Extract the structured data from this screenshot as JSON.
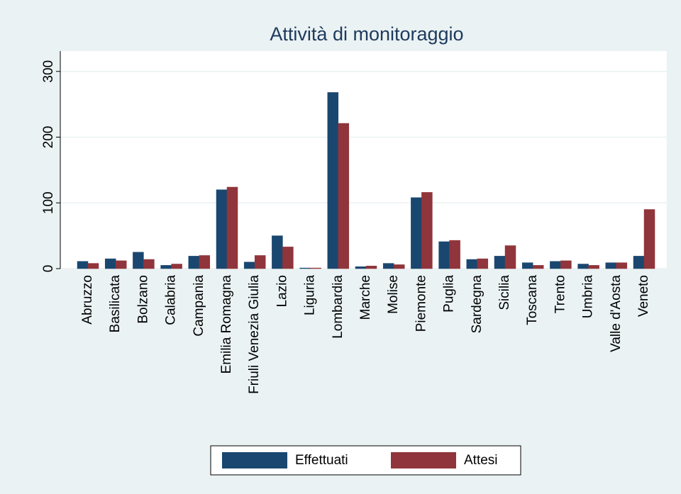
{
  "chart_data": {
    "type": "bar",
    "title": "Attività di monitoraggio",
    "categories": [
      "Abruzzo",
      "Basilicata",
      "Bolzano",
      "Calabria",
      "Campania",
      "Emilia Romagna",
      "Friuli Venezia Giulia",
      "Lazio",
      "Liguria",
      "Lombardia",
      "Marche",
      "Molise",
      "Piemonte",
      "Puglia",
      "Sardegna",
      "Sicilia",
      "Toscana",
      "Trento",
      "Umbria",
      "Valle d'Aosta",
      "Veneto"
    ],
    "series": [
      {
        "name": "Effettuati",
        "color": "#1a476f",
        "values": [
          11,
          15,
          25,
          5,
          19,
          120,
          10,
          50,
          1,
          268,
          3,
          8,
          108,
          41,
          14,
          19,
          9,
          11,
          7,
          9,
          19
        ]
      },
      {
        "name": "Attesi",
        "color": "#90353b",
        "values": [
          8,
          12,
          14,
          7,
          20,
          124,
          20,
          33,
          1,
          221,
          4,
          6,
          116,
          43,
          15,
          35,
          5,
          12,
          5,
          9,
          90
        ]
      }
    ],
    "ylim": [
      0,
      331
    ],
    "yticks": [
      0,
      100,
      200,
      300
    ],
    "grid": true,
    "legend": "bottom"
  }
}
